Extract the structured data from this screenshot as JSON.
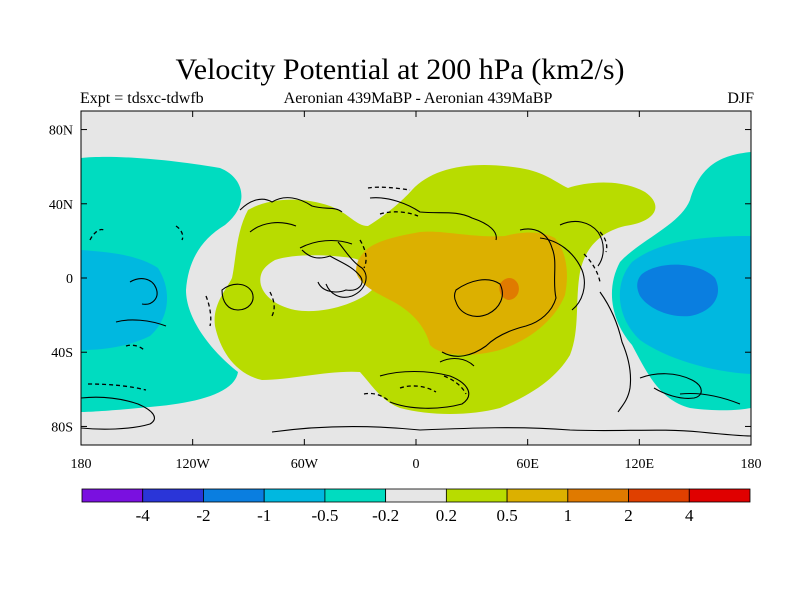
{
  "title": "Velocity Potential at 200 hPa (km2/s)",
  "subtitle_left": "Expt = tdsxc-tdwfb",
  "subtitle_center": "Aeronian 439MaBP - Aeronian 439MaBP",
  "subtitle_right": "DJF",
  "chart_data": {
    "type": "heatmap",
    "projection": "cylindrical-equidistant",
    "title": "Velocity Potential at 200 hPa (km2/s)",
    "x_ticks": [
      "180",
      "120W",
      "60W",
      "0",
      "60E",
      "120E",
      "180"
    ],
    "x_tick_values": [
      -180,
      -120,
      -60,
      0,
      60,
      120,
      180
    ],
    "y_ticks": [
      "80N",
      "40N",
      "0",
      "40S",
      "80S"
    ],
    "y_tick_values": [
      80,
      40,
      0,
      -40,
      -80
    ],
    "xlim": [
      -180,
      180
    ],
    "ylim": [
      -90,
      90
    ],
    "colorbar": {
      "levels": [
        "-4",
        "-2",
        "-1",
        "-0.5",
        "-0.2",
        "0.2",
        "0.5",
        "1",
        "2",
        "4"
      ],
      "colors": [
        "#7a10e0",
        "#2a35d8",
        "#0a7ee0",
        "#00b8e0",
        "#00dcc0",
        "#e6e6e6",
        "#b8dc00",
        "#dcb000",
        "#e07a00",
        "#e04000",
        "#e00000"
      ]
    },
    "regions": [
      {
        "name": "west-pacific-negative",
        "level_range": "-0.2 to -0.5",
        "center_lon": -155,
        "center_lat": 0
      },
      {
        "name": "west-pacific-core",
        "level_range": "-0.5 to -1",
        "center_lon": -160,
        "center_lat": -5
      },
      {
        "name": "east-pacific-negative",
        "level_range": "-0.2 to -0.5",
        "center_lon": 150,
        "center_lat": 0
      },
      {
        "name": "east-pacific-core",
        "level_range": "-1 to -2",
        "center_lon": 142,
        "center_lat": -4
      },
      {
        "name": "central-positive",
        "level_range": "0.2 to 0.5",
        "center_lon": 20,
        "center_lat": 0
      },
      {
        "name": "central-core",
        "level_range": "0.5 to 1",
        "center_lon": 30,
        "center_lat": 0
      },
      {
        "name": "central-max",
        "level_range": "1 to 2",
        "center_lon": 48,
        "center_lat": -4
      }
    ]
  }
}
